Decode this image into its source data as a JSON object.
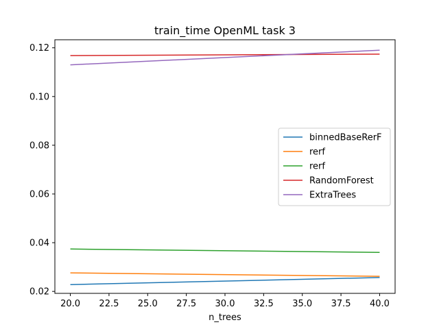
{
  "chart_data": {
    "type": "line",
    "title": "train_time OpenML task 3",
    "xlabel": "n_trees",
    "ylabel": "",
    "x": [
      20,
      40
    ],
    "xlim": [
      19,
      41
    ],
    "ylim": [
      0.0192,
      0.1233
    ],
    "xticks": [
      20.0,
      22.5,
      25.0,
      27.5,
      30.0,
      32.5,
      35.0,
      37.5,
      40.0
    ],
    "xtick_labels": [
      "20.0",
      "22.5",
      "25.0",
      "27.5",
      "30.0",
      "32.5",
      "35.0",
      "37.5",
      "40.0"
    ],
    "yticks": [
      0.02,
      0.04,
      0.06,
      0.08,
      0.1,
      0.12
    ],
    "ytick_labels": [
      "0.02",
      "0.04",
      "0.06",
      "0.08",
      "0.10",
      "0.12"
    ],
    "grid": false,
    "legend_position": "center-right",
    "series": [
      {
        "name": "binnedBaseRerF",
        "color": "#1f77b4",
        "values": [
          0.0228,
          0.0257
        ]
      },
      {
        "name": "rerf",
        "color": "#ff7f0e",
        "values": [
          0.0276,
          0.0262
        ]
      },
      {
        "name": "rerf",
        "color": "#2ca02c",
        "values": [
          0.0374,
          0.036
        ]
      },
      {
        "name": "RandomForest",
        "color": "#d62728",
        "values": [
          0.1168,
          0.1174
        ]
      },
      {
        "name": "ExtraTrees",
        "color": "#9467bd",
        "values": [
          0.113,
          0.119
        ]
      }
    ]
  }
}
